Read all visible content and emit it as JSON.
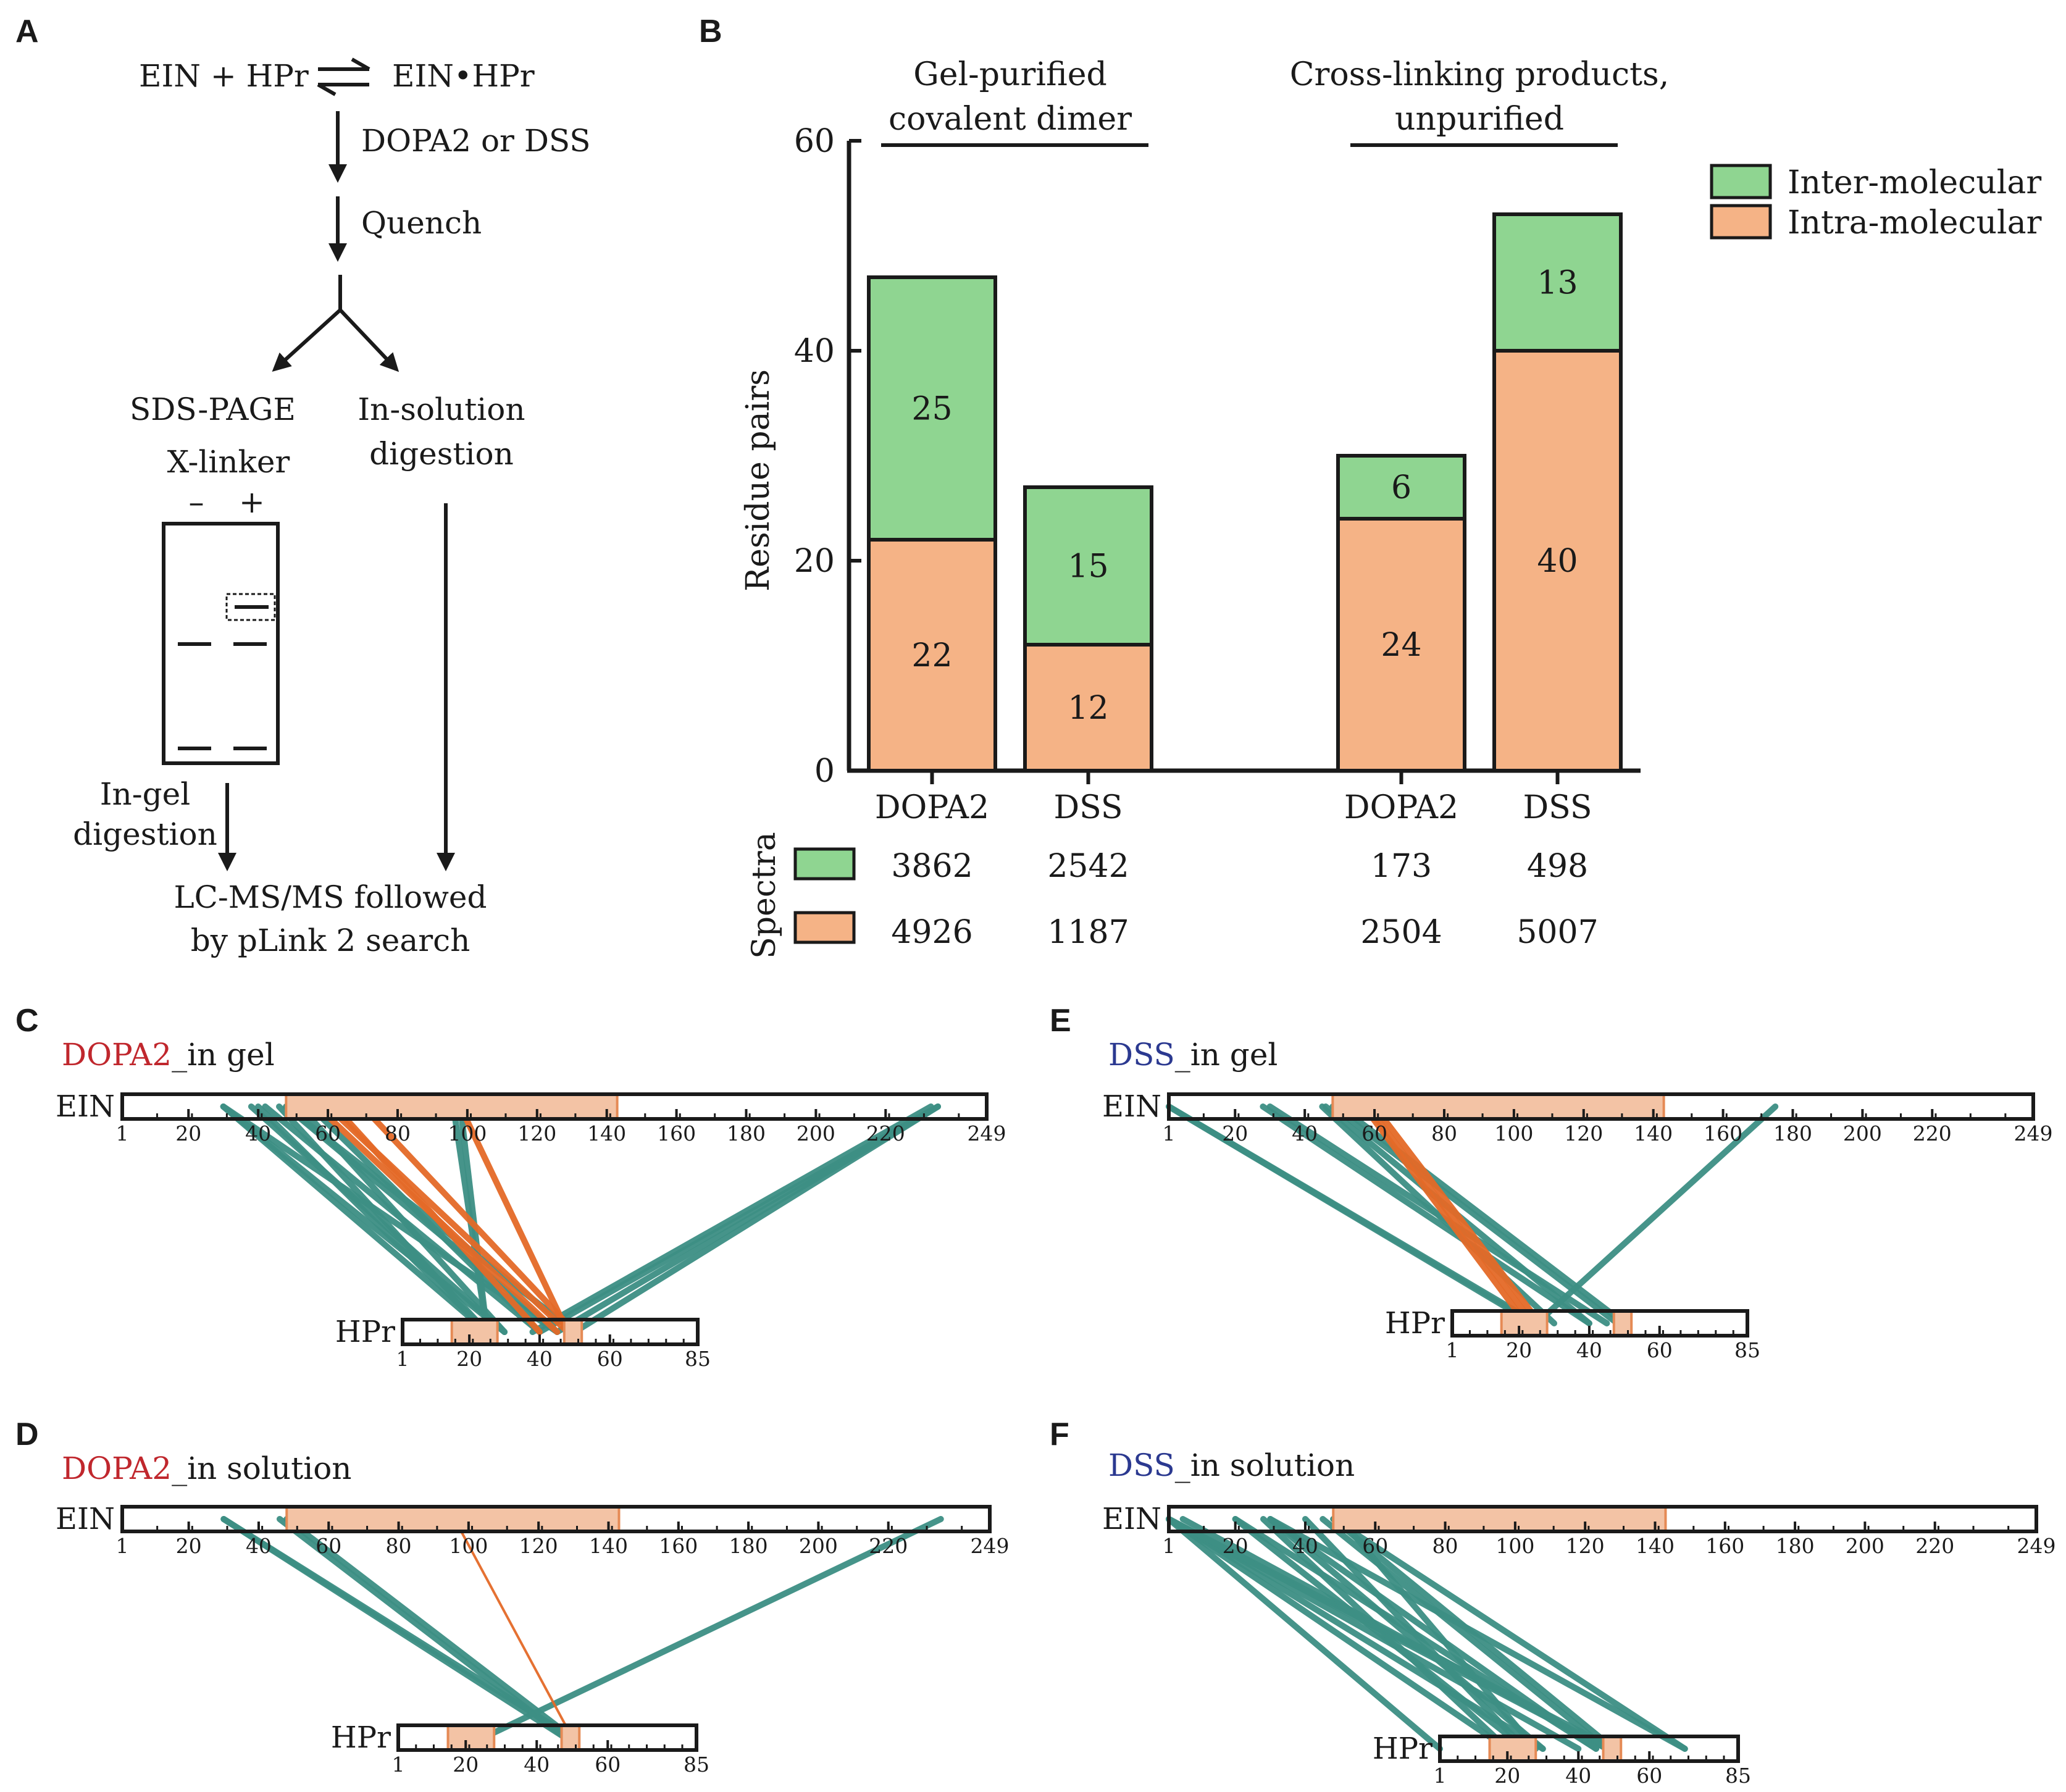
{
  "panels": {
    "A": {
      "letter": "A",
      "reaction_left": "EIN + HPr",
      "reaction_right": "EIN•HPr",
      "step1": "DOPA2 or DSS",
      "step2": "Quench",
      "branch_left": "SDS-PAGE",
      "branch_right_line1": "In-solution",
      "branch_right_line2": "digestion",
      "xlinker": "X-linker",
      "minus": "–",
      "plus": "+",
      "ingel_line1": "In-gel",
      "ingel_line2": "digestion",
      "final_line1": "LC-MS/MS followed",
      "final_line2": "by pLink 2 search"
    },
    "B": {
      "letter": "B"
    },
    "C": {
      "letter": "C",
      "crosslinker": "DOPA2",
      "suffix": "_in gel"
    },
    "D": {
      "letter": "D",
      "crosslinker": "DOPA2",
      "suffix": "_in solution"
    },
    "E": {
      "letter": "E",
      "crosslinker": "DSS",
      "suffix": "_in gel"
    },
    "F": {
      "letter": "F",
      "crosslinker": "DSS",
      "suffix": "_in solution"
    }
  },
  "colors": {
    "inter": "#8fd591",
    "intra": "#f5b386",
    "link_inter": "#3d8f84",
    "link_intra": "#e46a28",
    "active_site": "#f3c3a5",
    "active_site_border": "#e58a55",
    "dopa2_label": "#c0272d",
    "dss_label": "#2b3990"
  },
  "chart_data": [
    {
      "type": "bar",
      "stacked": true,
      "categories": [
        "DOPA2",
        "DSS",
        "DOPA2",
        "DSS"
      ],
      "groups": [
        {
          "label_line1": "Gel-purified",
          "label_line2": "covalent dimer",
          "categories": [
            0,
            1
          ]
        },
        {
          "label_line1": "Cross-linking products,",
          "label_line2": "unpurified",
          "categories": [
            2,
            3
          ]
        }
      ],
      "series": [
        {
          "name": "Intra-molecular",
          "values": [
            22,
            12,
            24,
            40
          ]
        },
        {
          "name": "Inter-molecular",
          "values": [
            25,
            15,
            6,
            13
          ]
        }
      ],
      "ylabel": "Residue pairs",
      "ylim": [
        0,
        60
      ],
      "yticks": [
        0,
        20,
        40,
        60
      ],
      "legend": "top-right",
      "spectra": {
        "label": "Spectra",
        "inter": [
          "3862",
          "2542",
          "173",
          "498"
        ],
        "intra": [
          "4926",
          "1187",
          "2504",
          "5007"
        ]
      }
    },
    {
      "type": "crosslink-map",
      "panel": "C",
      "proteins": {
        "EIN": {
          "label": "EIN",
          "length": 249,
          "ticks": [
            1,
            20,
            40,
            60,
            80,
            100,
            120,
            140,
            160,
            180,
            200,
            220,
            249
          ],
          "highlight": [
            [
              48,
              143
            ]
          ]
        },
        "HPr": {
          "label": "HPr",
          "length": 85,
          "ticks": [
            1,
            20,
            40,
            60,
            85
          ],
          "highlight": [
            [
              15,
              28
            ],
            [
              47,
              52
            ]
          ]
        }
      },
      "links_inter": [
        [
          30,
          25
        ],
        [
          30,
          30
        ],
        [
          30,
          45
        ],
        [
          38,
          30
        ],
        [
          40,
          25
        ],
        [
          42,
          40
        ],
        [
          46,
          25
        ],
        [
          48,
          45
        ],
        [
          48,
          50
        ],
        [
          52,
          30
        ],
        [
          55,
          40
        ],
        [
          96,
          25
        ],
        [
          98,
          25
        ],
        [
          235,
          40
        ],
        [
          235,
          45
        ],
        [
          235,
          50
        ],
        [
          233,
          38
        ]
      ],
      "links_intra": [
        [
          57,
          45
        ],
        [
          60,
          48
        ],
        [
          62,
          40
        ],
        [
          70,
          50
        ],
        [
          98,
          48
        ]
      ]
    },
    {
      "type": "crosslink-map",
      "panel": "D",
      "proteins": {
        "EIN": {
          "label": "EIN",
          "length": 249,
          "ticks": [
            1,
            20,
            40,
            60,
            80,
            100,
            120,
            140,
            160,
            180,
            200,
            220,
            249
          ],
          "highlight": [
            [
              48,
              143
            ]
          ]
        },
        "HPr": {
          "label": "HPr",
          "length": 85,
          "ticks": [
            1,
            20,
            40,
            60,
            85
          ],
          "highlight": [
            [
              15,
              28
            ],
            [
              47,
              52
            ]
          ]
        }
      },
      "links_inter": [
        [
          30,
          50
        ],
        [
          30,
          48
        ],
        [
          46,
          48
        ],
        [
          48,
          50
        ],
        [
          235,
          25
        ]
      ],
      "links_intra": [
        [
          96,
          50
        ]
      ]
    },
    {
      "type": "crosslink-map",
      "panel": "E",
      "proteins": {
        "EIN": {
          "label": "EIN",
          "length": 249,
          "ticks": [
            1,
            20,
            40,
            60,
            80,
            100,
            120,
            140,
            160,
            180,
            200,
            220,
            249
          ],
          "highlight": [
            [
              48,
              143
            ]
          ]
        },
        "HPr": {
          "label": "HPr",
          "length": 85,
          "ticks": [
            1,
            20,
            40,
            60,
            85
          ],
          "highlight": [
            [
              15,
              28
            ],
            [
              47,
              52
            ]
          ]
        }
      },
      "links_inter": [
        [
          1,
          24
        ],
        [
          1,
          25
        ],
        [
          28,
          40
        ],
        [
          30,
          45
        ],
        [
          45,
          30
        ],
        [
          46,
          40
        ],
        [
          48,
          48
        ],
        [
          50,
          50
        ],
        [
          175,
          25
        ]
      ],
      "links_intra": [
        [
          57,
          22
        ],
        [
          58,
          24
        ],
        [
          60,
          26
        ]
      ]
    },
    {
      "type": "crosslink-map",
      "panel": "F",
      "proteins": {
        "EIN": {
          "label": "EIN",
          "length": 249,
          "ticks": [
            1,
            20,
            40,
            60,
            80,
            100,
            120,
            140,
            160,
            180,
            200,
            220,
            249
          ],
          "highlight": [
            [
              48,
              143
            ]
          ]
        },
        "HPr": {
          "label": "HPr",
          "length": 85,
          "ticks": [
            1,
            20,
            40,
            60,
            85
          ],
          "highlight": [
            [
              15,
              28
            ],
            [
              47,
              52
            ]
          ]
        }
      },
      "links_inter": [
        [
          1,
          1
        ],
        [
          1,
          20
        ],
        [
          1,
          30
        ],
        [
          1,
          40
        ],
        [
          1,
          48
        ],
        [
          1,
          50
        ],
        [
          5,
          48
        ],
        [
          20,
          25
        ],
        [
          20,
          45
        ],
        [
          28,
          20
        ],
        [
          30,
          30
        ],
        [
          30,
          45
        ],
        [
          30,
          70
        ],
        [
          40,
          25
        ],
        [
          45,
          48
        ],
        [
          48,
          50
        ],
        [
          48,
          70
        ],
        [
          50,
          28
        ]
      ],
      "links_intra": []
    }
  ]
}
